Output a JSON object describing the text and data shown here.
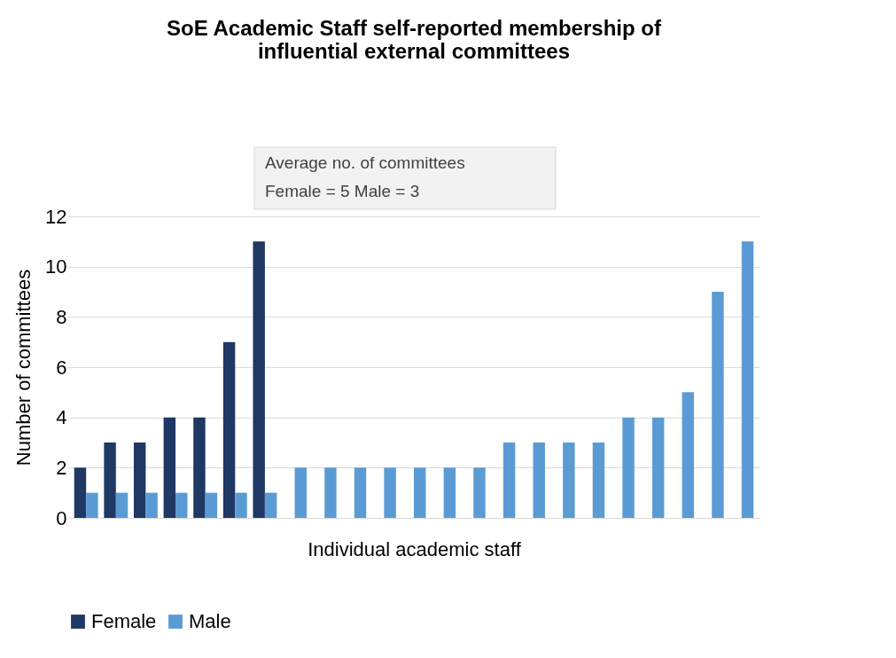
{
  "chart_data": {
    "type": "bar",
    "title": [
      "SoE Academic Staff self-reported membership of",
      "influential external committees"
    ],
    "xlabel": "Individual academic staff",
    "ylabel": "Number of committees",
    "annotations": [
      "Average no. of committees",
      "Female = 5          Male = 3"
    ],
    "categories": [
      null,
      null,
      null,
      null,
      null,
      null,
      null,
      null,
      null,
      null,
      null,
      null,
      null,
      null,
      null,
      null,
      null,
      null,
      null,
      null,
      null,
      null,
      null
    ],
    "series": [
      {
        "name": "Female",
        "color": "#1f3864",
        "values": [
          2,
          3,
          3,
          4,
          4,
          7,
          11,
          null,
          null,
          null,
          null,
          null,
          null,
          null,
          null,
          null,
          null,
          null,
          null,
          null,
          null,
          null,
          null
        ]
      },
      {
        "name": "Male",
        "color": "#5b9bd5",
        "values": [
          1,
          1,
          1,
          1,
          1,
          1,
          1,
          2,
          2,
          2,
          2,
          2,
          2,
          2,
          3,
          3,
          3,
          3,
          4,
          4,
          5,
          9,
          11
        ]
      }
    ],
    "ylim": [
      0,
      12
    ],
    "yticks": [
      0,
      2,
      4,
      6,
      8,
      10,
      12
    ],
    "grid": "y",
    "legend": "bottom",
    "tick_labels": "y"
  }
}
